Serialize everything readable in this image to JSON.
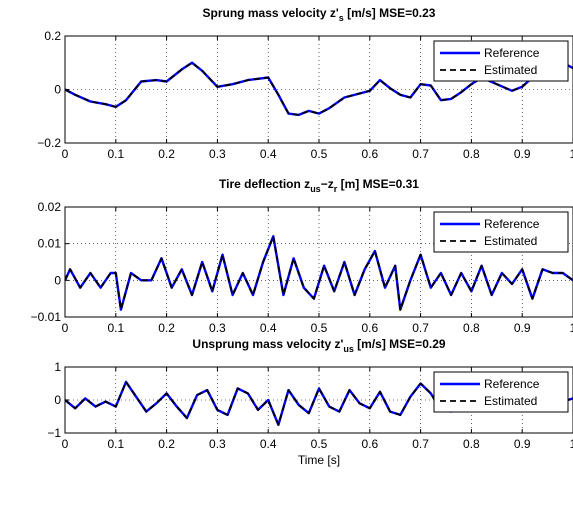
{
  "chart_data": [
    {
      "type": "line",
      "title": {
        "base": "Sprung mass velocity z'",
        "sub": "s",
        "suffix": " [m/s] MSE=0.23"
      },
      "xlabel": "",
      "ylabel": "",
      "xlim": [
        0,
        1
      ],
      "ylim": [
        -0.2,
        0.2
      ],
      "xticks": [
        0,
        0.1,
        0.2,
        0.3,
        0.4,
        0.5,
        0.6,
        0.7,
        0.8,
        0.9,
        1
      ],
      "xtick_labels": [
        "0",
        "0.1",
        "0.2",
        "0.3",
        "0.4",
        "0.5",
        "0.6",
        "0.7",
        "0.8",
        "0.9",
        "1"
      ],
      "yticks": [
        -0.2,
        0,
        0.2
      ],
      "ytick_labels": [
        "−0.2",
        "0",
        "0.2"
      ],
      "grid": true,
      "legend": "top-right",
      "x": [
        0,
        0.02,
        0.05,
        0.08,
        0.1,
        0.12,
        0.15,
        0.18,
        0.2,
        0.23,
        0.25,
        0.27,
        0.3,
        0.33,
        0.36,
        0.38,
        0.4,
        0.42,
        0.44,
        0.46,
        0.48,
        0.5,
        0.52,
        0.55,
        0.58,
        0.6,
        0.62,
        0.64,
        0.66,
        0.68,
        0.7,
        0.72,
        0.74,
        0.76,
        0.78,
        0.8,
        0.82,
        0.85,
        0.88,
        0.9,
        0.92,
        0.94,
        0.96,
        0.98,
        1
      ],
      "series": [
        {
          "name": "Reference",
          "color": "#0000ff",
          "style": "solid",
          "values": [
            0,
            -0.02,
            -0.045,
            -0.055,
            -0.065,
            -0.04,
            0.03,
            0.035,
            0.03,
            0.075,
            0.1,
            0.07,
            0.01,
            0.02,
            0.035,
            0.04,
            0.045,
            -0.02,
            -0.09,
            -0.095,
            -0.08,
            -0.09,
            -0.07,
            -0.03,
            -0.015,
            -0.005,
            0.035,
            0.005,
            -0.02,
            -0.03,
            0.02,
            0.015,
            -0.04,
            -0.035,
            -0.01,
            0.02,
            0.045,
            0.02,
            -0.005,
            0.01,
            0.045,
            0.055,
            0.09,
            0.1,
            0.08
          ]
        },
        {
          "name": "Estimated",
          "color": "#000000",
          "style": "dashed",
          "values": [
            0,
            -0.02,
            -0.045,
            -0.055,
            -0.065,
            -0.04,
            0.03,
            0.035,
            0.03,
            0.075,
            0.1,
            0.07,
            0.01,
            0.02,
            0.035,
            0.04,
            0.045,
            -0.02,
            -0.09,
            -0.095,
            -0.08,
            -0.09,
            -0.07,
            -0.03,
            -0.015,
            -0.005,
            0.035,
            0.005,
            -0.02,
            -0.03,
            0.02,
            0.015,
            -0.04,
            -0.035,
            -0.01,
            0.02,
            0.045,
            0.02,
            -0.005,
            0.01,
            0.045,
            0.055,
            0.09,
            0.1,
            0.08
          ]
        }
      ]
    },
    {
      "type": "line",
      "title": {
        "base": "Tire deflection z",
        "sub": "us",
        "mid": "−z",
        "sub2": "r",
        "suffix": " [m] MSE=0.31"
      },
      "xlabel": "",
      "ylabel": "",
      "xlim": [
        0,
        1
      ],
      "ylim": [
        -0.01,
        0.02
      ],
      "xticks": [
        0,
        0.1,
        0.2,
        0.3,
        0.4,
        0.5,
        0.6,
        0.7,
        0.8,
        0.9,
        1
      ],
      "xtick_labels": [
        "0",
        "0.1",
        "0.2",
        "0.3",
        "0.4",
        "0.5",
        "0.6",
        "0.7",
        "0.8",
        "0.9",
        "1"
      ],
      "yticks": [
        -0.01,
        0,
        0.01,
        0.02
      ],
      "ytick_labels": [
        "−0.01",
        "0",
        "0.01",
        "0.02"
      ],
      "grid": true,
      "legend": "top-right",
      "x": [
        0,
        0.01,
        0.03,
        0.05,
        0.07,
        0.09,
        0.1,
        0.11,
        0.13,
        0.15,
        0.17,
        0.19,
        0.21,
        0.23,
        0.25,
        0.27,
        0.29,
        0.31,
        0.33,
        0.35,
        0.37,
        0.39,
        0.41,
        0.43,
        0.45,
        0.47,
        0.49,
        0.51,
        0.53,
        0.55,
        0.57,
        0.59,
        0.61,
        0.63,
        0.65,
        0.66,
        0.68,
        0.7,
        0.72,
        0.74,
        0.76,
        0.78,
        0.8,
        0.82,
        0.84,
        0.86,
        0.88,
        0.9,
        0.92,
        0.94,
        0.96,
        0.98,
        1
      ],
      "series": [
        {
          "name": "Reference",
          "color": "#0000ff",
          "style": "solid",
          "values": [
            0.0,
            0.003,
            -0.002,
            0.002,
            -0.002,
            0.002,
            0.002,
            -0.008,
            0.002,
            0.0,
            0.0,
            0.006,
            -0.002,
            0.003,
            -0.004,
            0.005,
            -0.003,
            0.007,
            -0.004,
            0.002,
            -0.004,
            0.005,
            0.012,
            -0.004,
            0.006,
            -0.002,
            -0.005,
            0.004,
            -0.003,
            0.005,
            -0.004,
            0.003,
            0.008,
            -0.002,
            0.004,
            -0.008,
            0.0,
            0.007,
            -0.002,
            0.002,
            -0.004,
            0.002,
            -0.003,
            0.004,
            -0.004,
            0.002,
            -0.001,
            0.003,
            -0.005,
            0.003,
            0.002,
            0.002,
            0.0
          ]
        },
        {
          "name": "Estimated",
          "color": "#000000",
          "style": "dashed",
          "values": [
            0.0,
            0.003,
            -0.002,
            0.002,
            -0.002,
            0.002,
            0.002,
            -0.008,
            0.002,
            0.0,
            0.0,
            0.006,
            -0.002,
            0.003,
            -0.004,
            0.005,
            -0.003,
            0.007,
            -0.004,
            0.002,
            -0.004,
            0.005,
            0.012,
            -0.004,
            0.006,
            -0.002,
            -0.005,
            0.004,
            -0.003,
            0.005,
            -0.004,
            0.003,
            0.008,
            -0.002,
            0.004,
            -0.008,
            0.0,
            0.007,
            -0.002,
            0.002,
            -0.004,
            0.002,
            -0.003,
            0.004,
            -0.004,
            0.002,
            -0.001,
            0.003,
            -0.005,
            0.003,
            0.002,
            0.002,
            0.0
          ]
        }
      ]
    },
    {
      "type": "line",
      "title": {
        "base": "Unsprung mass velocity z'",
        "sub": "us",
        "suffix": " [m/s] MSE=0.29"
      },
      "xlabel": "Time [s]",
      "ylabel": "",
      "xlim": [
        0,
        1
      ],
      "ylim": [
        -1,
        1
      ],
      "xticks": [
        0,
        0.1,
        0.2,
        0.3,
        0.4,
        0.5,
        0.6,
        0.7,
        0.8,
        0.9,
        1
      ],
      "xtick_labels": [
        "0",
        "0.1",
        "0.2",
        "0.3",
        "0.4",
        "0.5",
        "0.6",
        "0.7",
        "0.8",
        "0.9",
        "1"
      ],
      "yticks": [
        -1,
        0,
        1
      ],
      "ytick_labels": [
        "−1",
        "0",
        "1"
      ],
      "grid": true,
      "legend": "top-right",
      "x": [
        0,
        0.02,
        0.04,
        0.06,
        0.08,
        0.1,
        0.12,
        0.14,
        0.16,
        0.18,
        0.2,
        0.22,
        0.24,
        0.26,
        0.28,
        0.3,
        0.32,
        0.34,
        0.36,
        0.38,
        0.4,
        0.42,
        0.44,
        0.46,
        0.48,
        0.5,
        0.52,
        0.54,
        0.56,
        0.58,
        0.6,
        0.62,
        0.64,
        0.66,
        0.68,
        0.7,
        0.72,
        0.74,
        0.76,
        0.78,
        0.8,
        0.82,
        0.84,
        0.86,
        0.88,
        0.9,
        0.92,
        0.94,
        0.96,
        0.98,
        1
      ],
      "series": [
        {
          "name": "Reference",
          "color": "#0000ff",
          "style": "solid",
          "values": [
            0,
            -0.25,
            0.05,
            -0.2,
            -0.05,
            -0.2,
            0.55,
            0.1,
            -0.35,
            -0.1,
            0.2,
            -0.2,
            -0.55,
            0.15,
            0.3,
            -0.3,
            -0.45,
            0.35,
            0.2,
            -0.3,
            0.0,
            -0.75,
            0.3,
            -0.15,
            -0.4,
            0.35,
            -0.2,
            -0.35,
            0.3,
            -0.1,
            -0.25,
            0.25,
            -0.35,
            -0.45,
            0.1,
            0.5,
            0.2,
            -0.3,
            -0.35,
            0.2,
            0.3,
            0.1,
            -0.2,
            0.05,
            0.15,
            -0.1,
            0.05,
            0.1,
            -0.2,
            -0.05,
            0.05
          ]
        },
        {
          "name": "Estimated",
          "color": "#000000",
          "style": "dashed",
          "values": [
            0,
            -0.25,
            0.05,
            -0.2,
            -0.05,
            -0.2,
            0.55,
            0.1,
            -0.35,
            -0.1,
            0.2,
            -0.2,
            -0.55,
            0.15,
            0.3,
            -0.3,
            -0.45,
            0.35,
            0.2,
            -0.3,
            0.0,
            -0.75,
            0.3,
            -0.15,
            -0.4,
            0.35,
            -0.2,
            -0.35,
            0.3,
            -0.1,
            -0.25,
            0.25,
            -0.35,
            -0.45,
            0.1,
            0.5,
            0.2,
            -0.3,
            -0.35,
            0.2,
            0.3,
            0.1,
            -0.2,
            0.05,
            0.15,
            -0.1,
            0.05,
            0.1,
            -0.2,
            -0.05,
            0.05
          ]
        }
      ]
    }
  ]
}
